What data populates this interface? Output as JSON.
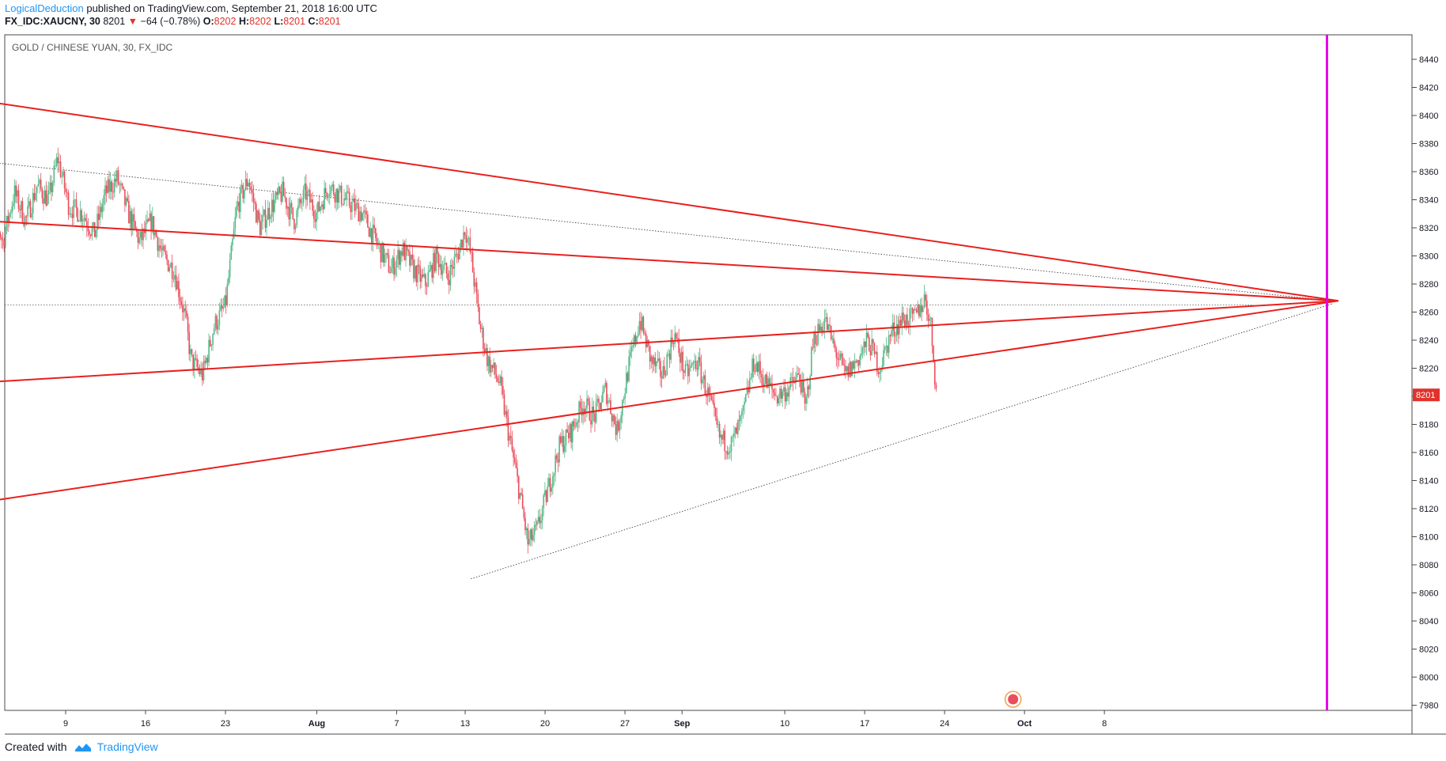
{
  "header": {
    "author": "LogicalDeduction",
    "published": " published on TradingView.com, September 21, 2018 16:00 UTC",
    "symbol": "FX_IDC:XAUCNY, 30",
    "last": "8201",
    "change": "−64 (−0.78%)",
    "o_label": "O:",
    "o_value": "8202",
    "h_label": "H:",
    "h_value": "8202",
    "l_label": "L:",
    "l_value": "8201",
    "c_label": "C:",
    "c_value": "8201",
    "down_arrow": "▼"
  },
  "footer": {
    "created_with": "Created with",
    "brand": "TradingView"
  },
  "colors": {
    "up": "#53b987",
    "down": "#eb4d5c",
    "trend": "#e8201e",
    "vertical": "#e600e6",
    "axis_text": "#131722",
    "price_badge": "#e0322c"
  },
  "chart_data": {
    "type": "candlestick",
    "title": "GOLD / CHINESE YUAN, 30, FX_IDC",
    "timeframe": "30",
    "ylim": [
      7970,
      8460
    ],
    "y_ticks": [
      7980,
      8000,
      8020,
      8040,
      8060,
      8080,
      8100,
      8120,
      8140,
      8160,
      8180,
      8200,
      8220,
      8240,
      8260,
      8280,
      8300,
      8320,
      8340,
      8360,
      8380,
      8400,
      8420,
      8440
    ],
    "x_ticks": [
      "9",
      "16",
      "23",
      "Aug",
      "7",
      "13",
      "20",
      "27",
      "Sep",
      "10",
      "17",
      "24",
      "Oct",
      "8"
    ],
    "x_tick_days": [
      0,
      7,
      14,
      22,
      29,
      35,
      42,
      49,
      54,
      63,
      70,
      77,
      84,
      91
    ],
    "last_price_label": "8201",
    "grid": false,
    "price_path": [
      [
        -7.0,
        8295
      ],
      [
        -6.3,
        8330
      ],
      [
        -5.5,
        8310
      ],
      [
        -4.5,
        8345
      ],
      [
        -3.5,
        8325
      ],
      [
        -2.5,
        8350
      ],
      [
        -1.5,
        8340
      ],
      [
        -0.7,
        8370
      ],
      [
        0.3,
        8335
      ],
      [
        1.5,
        8330
      ],
      [
        2.5,
        8315
      ],
      [
        3.5,
        8345
      ],
      [
        4.5,
        8355
      ],
      [
        5.5,
        8330
      ],
      [
        6.5,
        8310
      ],
      [
        7.5,
        8325
      ],
      [
        8.5,
        8300
      ],
      [
        9.5,
        8290
      ],
      [
        10.5,
        8255
      ],
      [
        11.0,
        8225
      ],
      [
        12.0,
        8215
      ],
      [
        13.0,
        8250
      ],
      [
        14.0,
        8265
      ],
      [
        15.0,
        8335
      ],
      [
        16.0,
        8355
      ],
      [
        17.0,
        8320
      ],
      [
        18.0,
        8335
      ],
      [
        19.0,
        8345
      ],
      [
        20.0,
        8325
      ],
      [
        21.0,
        8345
      ],
      [
        22.0,
        8330
      ],
      [
        23.0,
        8350
      ],
      [
        24.5,
        8340
      ],
      [
        26.0,
        8330
      ],
      [
        27.5,
        8305
      ],
      [
        28.5,
        8290
      ],
      [
        29.5,
        8305
      ],
      [
        30.5,
        8290
      ],
      [
        31.5,
        8280
      ],
      [
        32.5,
        8300
      ],
      [
        33.5,
        8285
      ],
      [
        34.5,
        8305
      ],
      [
        35.0,
        8320
      ],
      [
        35.5,
        8300
      ],
      [
        36.3,
        8250
      ],
      [
        37.0,
        8225
      ],
      [
        38.0,
        8210
      ],
      [
        39.0,
        8165
      ],
      [
        39.8,
        8130
      ],
      [
        40.5,
        8095
      ],
      [
        41.3,
        8105
      ],
      [
        42.3,
        8135
      ],
      [
        43.3,
        8165
      ],
      [
        44.3,
        8175
      ],
      [
        45.3,
        8195
      ],
      [
        46.3,
        8185
      ],
      [
        47.3,
        8205
      ],
      [
        48.3,
        8175
      ],
      [
        49.3,
        8220
      ],
      [
        50.3,
        8255
      ],
      [
        51.3,
        8225
      ],
      [
        52.3,
        8215
      ],
      [
        53.3,
        8245
      ],
      [
        54.3,
        8215
      ],
      [
        55.3,
        8225
      ],
      [
        56.3,
        8200
      ],
      [
        57.3,
        8170
      ],
      [
        58.3,
        8165
      ],
      [
        59.3,
        8185
      ],
      [
        60.3,
        8225
      ],
      [
        61.3,
        8210
      ],
      [
        62.3,
        8200
      ],
      [
        63.3,
        8205
      ],
      [
        64.3,
        8215
      ],
      [
        64.8,
        8190
      ],
      [
        65.5,
        8240
      ],
      [
        66.5,
        8255
      ],
      [
        67.3,
        8235
      ],
      [
        68.3,
        8215
      ],
      [
        69.3,
        8225
      ],
      [
        70.3,
        8240
      ],
      [
        71.3,
        8220
      ],
      [
        72.3,
        8245
      ],
      [
        73.3,
        8255
      ],
      [
        74.3,
        8255
      ],
      [
        75.3,
        8270
      ],
      [
        75.8,
        8250
      ],
      [
        76.3,
        8201
      ]
    ],
    "annotations": {
      "upper_wedge_line": {
        "start": [
          -7.0,
          8410
        ],
        "end": [
          111.5,
          8268
        ]
      },
      "upper_inner_line": {
        "start": [
          -7.0,
          8325
        ],
        "end": [
          111.5,
          8268
        ]
      },
      "lower_inner_line": {
        "start": [
          -7.0,
          8210
        ],
        "end": [
          111.5,
          8268
        ]
      },
      "lower_wedge_line": {
        "start": [
          -7.0,
          8125
        ],
        "end": [
          111.5,
          8268
        ]
      },
      "dotted_upper": {
        "start": [
          -7.0,
          8367
        ],
        "end": [
          111.0,
          8268
        ]
      },
      "dotted_lower": {
        "start": [
          35.5,
          8070
        ],
        "end": [
          111.0,
          8266
        ]
      },
      "dotted_horizontal": {
        "y": 8265
      },
      "vertical_line_day": 110.5,
      "event_marker_day": 83.0
    }
  }
}
